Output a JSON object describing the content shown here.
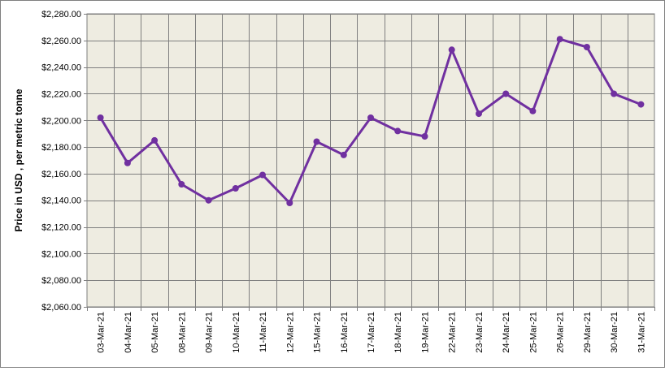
{
  "chart_data": {
    "type": "line",
    "title": "",
    "xlabel": "",
    "ylabel": "Price in USD , per metric tonne",
    "ylim": [
      2060,
      2280
    ],
    "yticks": [
      2060,
      2080,
      2100,
      2120,
      2140,
      2160,
      2180,
      2200,
      2220,
      2240,
      2260,
      2280
    ],
    "ytick_labels": [
      "$2,060.00",
      "$2,080.00",
      "$2,100.00",
      "$2,120.00",
      "$2,140.00",
      "$2,160.00",
      "$2,180.00",
      "$2,200.00",
      "$2,220.00",
      "$2,240.00",
      "$2,260.00",
      "$2,280.00"
    ],
    "categories": [
      "03-Mar-21",
      "04-Mar-21",
      "05-Mar-21",
      "08-Mar-21",
      "09-Mar-21",
      "10-Mar-21",
      "11-Mar-21",
      "12-Mar-21",
      "15-Mar-21",
      "16-Mar-21",
      "17-Mar-21",
      "18-Mar-21",
      "19-Mar-21",
      "22-Mar-21",
      "23-Mar-21",
      "24-Mar-21",
      "25-Mar-21",
      "26-Mar-21",
      "29-Mar-21",
      "30-Mar-21",
      "31-Mar-21"
    ],
    "series": [
      {
        "values": [
          2202,
          2168,
          2185,
          2152,
          2140,
          2149,
          2159,
          2138,
          2184,
          2174,
          2202,
          2192,
          2188,
          2253,
          2205,
          2220,
          2207,
          2261,
          2255,
          2220,
          2212
        ]
      }
    ],
    "grid": true,
    "legend": "none",
    "colors": {
      "plot_background": "#eeece1",
      "gridline": "#7f7f7f",
      "line": "#7030a0",
      "text": "#000000"
    }
  }
}
